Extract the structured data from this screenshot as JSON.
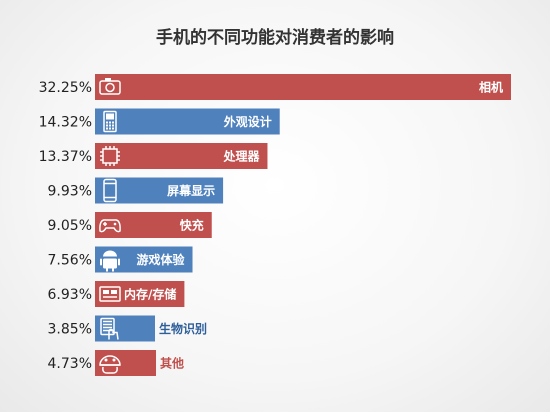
{
  "chart_data": {
    "type": "bar",
    "orientation": "horizontal",
    "title": "手机的不同功能对消费者的影响",
    "categories": [
      "相机",
      "外观设计",
      "处理器",
      "屏幕显示",
      "快充",
      "游戏体验",
      "内存/存储",
      "生物识别",
      "其他"
    ],
    "values": [
      32.25,
      14.32,
      13.37,
      9.93,
      9.05,
      7.56,
      6.93,
      3.85,
      4.73
    ],
    "value_labels": [
      "32.25%",
      "14.32%",
      "13.37%",
      "9.93%",
      "9.05%",
      "7.56%",
      "6.93%",
      "3.85%",
      "4.73%"
    ],
    "bar_colors": [
      "#c0504d",
      "#4f81bd",
      "#c0504d",
      "#4f81bd",
      "#c0504d",
      "#4f81bd",
      "#c0504d",
      "#4f81bd",
      "#c0504d"
    ],
    "label_colors": [
      "#ffffff",
      "#ffffff",
      "#ffffff",
      "#ffffff",
      "#ffffff",
      "#ffffff",
      "#ffffff",
      "#2f5f9a",
      "#c0504d"
    ],
    "icons": [
      "camera-icon",
      "phone-icon",
      "chip-icon",
      "smartphone-icon",
      "gamepad-icon",
      "android-icon",
      "memory-card-icon",
      "fingerprint-icon",
      "robot-icon"
    ],
    "xlim": [
      0,
      32.25
    ],
    "grid": false,
    "legend": "none"
  }
}
